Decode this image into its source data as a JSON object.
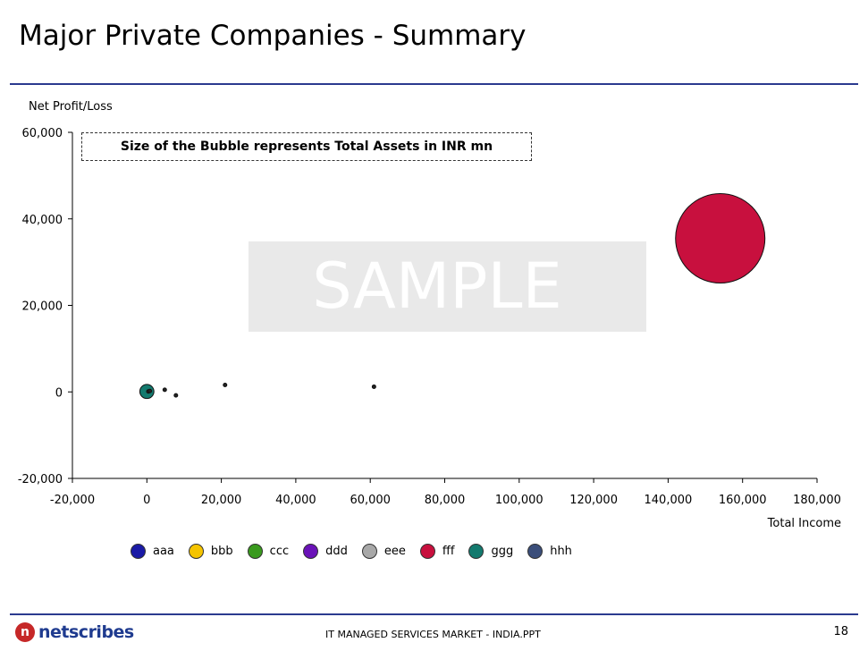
{
  "slide": {
    "title": "Major Private Companies - Summary",
    "footer": "IT MANAGED SERVICES MARKET - INDIA.PPT",
    "page_number": "18",
    "logo_text": "netscribes",
    "watermark": "SAMPLE"
  },
  "chart_data": {
    "type": "scatter",
    "subtype": "bubble",
    "xlabel": "Total Income",
    "ylabel": "Net Profit/Loss",
    "annotation": "Size of the Bubble represents Total Assets in INR mn",
    "xlim": [
      -20000,
      180000
    ],
    "ylim": [
      -20000,
      60000
    ],
    "x_ticks": [
      -20000,
      0,
      20000,
      40000,
      60000,
      80000,
      100000,
      120000,
      140000,
      160000,
      180000
    ],
    "y_ticks": [
      -20000,
      0,
      20000,
      40000,
      60000
    ],
    "x_tick_labels": [
      "-20,000",
      "0",
      "20,000",
      "40,000",
      "60,000",
      "80,000",
      "100,000",
      "120,000",
      "140,000",
      "160,000",
      "180,000"
    ],
    "y_tick_labels": [
      "-20,000",
      "0",
      "20,000",
      "40,000",
      "60,000"
    ],
    "legend_position": "bottom",
    "series": [
      {
        "name": "aaa",
        "color": "#1a1aa6",
        "x": 4800,
        "y": 500,
        "size": 200
      },
      {
        "name": "bbb",
        "color": "#f5c400",
        "x": 7800,
        "y": -800,
        "size": 200
      },
      {
        "name": "ccc",
        "color": "#3a9a1e",
        "x": 21000,
        "y": 1600,
        "size": 200
      },
      {
        "name": "ddd",
        "color": "#6a12b8",
        "x": 61000,
        "y": 1200,
        "size": 200
      },
      {
        "name": "eee",
        "color": "#a8a8a8",
        "x": 400,
        "y": 100,
        "size": 100
      },
      {
        "name": "fff",
        "color": "#c8103e",
        "x": 154000,
        "y": 35500,
        "size": 240000
      },
      {
        "name": "ggg",
        "color": "#137a6e",
        "x": 0,
        "y": 100,
        "size": 6000
      },
      {
        "name": "hhh",
        "color": "#3b4e7a",
        "x": 800,
        "y": 200,
        "size": 100
      }
    ]
  }
}
